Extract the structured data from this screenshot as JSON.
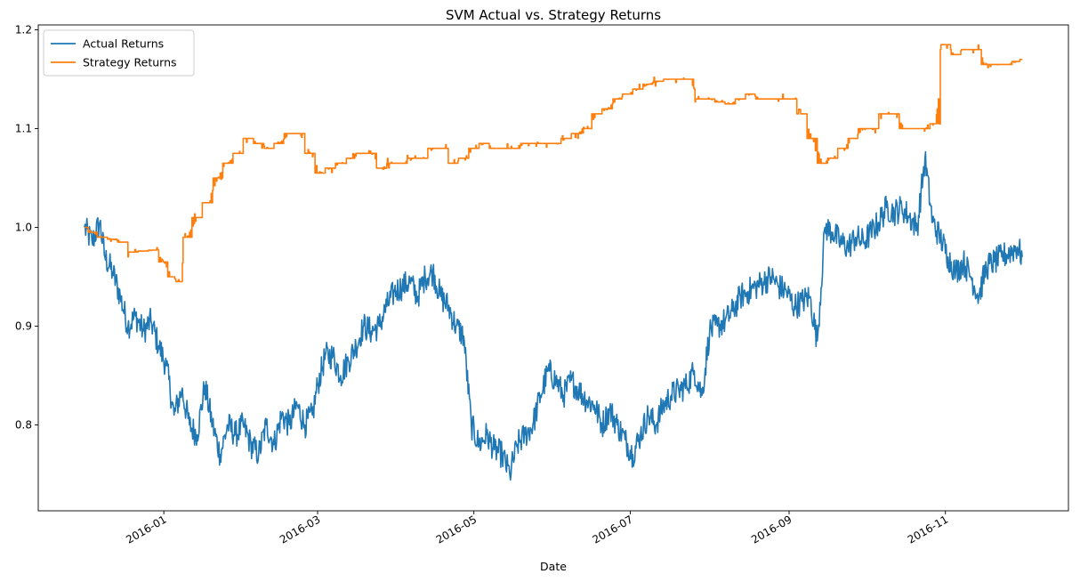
{
  "chart_data": {
    "type": "line",
    "title": "SVM Actual vs. Strategy Returns",
    "xlabel": "Date",
    "ylabel": "",
    "xlim": [
      "2015-11-13",
      "2016-12-19"
    ],
    "ylim": [
      0.713,
      1.205
    ],
    "x_ticks": [
      {
        "date": "2016-01-01",
        "label": "2016-01"
      },
      {
        "date": "2016-03-01",
        "label": "2016-03"
      },
      {
        "date": "2016-05-01",
        "label": "2016-05"
      },
      {
        "date": "2016-07-01",
        "label": "2016-07"
      },
      {
        "date": "2016-09-01",
        "label": "2016-09"
      },
      {
        "date": "2016-11-01",
        "label": "2016-11"
      }
    ],
    "y_ticks": [
      {
        "value": 0.8,
        "label": "0.8"
      },
      {
        "value": 0.9,
        "label": "0.9"
      },
      {
        "value": 1.0,
        "label": "1.0"
      },
      {
        "value": 1.1,
        "label": "1.1"
      },
      {
        "value": 1.2,
        "label": "1.2"
      }
    ],
    "grid": false,
    "legend_position": "top-left",
    "series": [
      {
        "name": "Actual Returns",
        "color": "#1f77b4",
        "x": [
          "2015-12-01",
          "2015-12-04",
          "2015-12-07",
          "2015-12-09",
          "2015-12-12",
          "2015-12-15",
          "2015-12-18",
          "2015-12-21",
          "2015-12-24",
          "2015-12-27",
          "2015-12-30",
          "2016-01-02",
          "2016-01-05",
          "2016-01-08",
          "2016-01-11",
          "2016-01-14",
          "2016-01-17",
          "2016-01-20",
          "2016-01-23",
          "2016-01-26",
          "2016-01-29",
          "2016-02-01",
          "2016-02-04",
          "2016-02-07",
          "2016-02-10",
          "2016-02-13",
          "2016-02-16",
          "2016-02-19",
          "2016-02-22",
          "2016-02-25",
          "2016-02-28",
          "2016-03-01",
          "2016-03-04",
          "2016-03-07",
          "2016-03-10",
          "2016-03-13",
          "2016-03-16",
          "2016-03-19",
          "2016-03-22",
          "2016-03-25",
          "2016-03-28",
          "2016-03-31",
          "2016-04-03",
          "2016-04-06",
          "2016-04-09",
          "2016-04-12",
          "2016-04-15",
          "2016-04-18",
          "2016-04-21",
          "2016-04-24",
          "2016-04-27",
          "2016-04-30",
          "2016-05-03",
          "2016-05-06",
          "2016-05-09",
          "2016-05-12",
          "2016-05-15",
          "2016-05-18",
          "2016-05-21",
          "2016-05-24",
          "2016-05-27",
          "2016-05-30",
          "2016-06-02",
          "2016-06-05",
          "2016-06-08",
          "2016-06-11",
          "2016-06-14",
          "2016-06-17",
          "2016-06-20",
          "2016-06-23",
          "2016-06-26",
          "2016-06-29",
          "2016-07-02",
          "2016-07-05",
          "2016-07-08",
          "2016-07-11",
          "2016-07-14",
          "2016-07-17",
          "2016-07-20",
          "2016-07-23",
          "2016-07-26",
          "2016-07-29",
          "2016-08-01",
          "2016-08-04",
          "2016-08-07",
          "2016-08-10",
          "2016-08-13",
          "2016-08-16",
          "2016-08-19",
          "2016-08-22",
          "2016-08-25",
          "2016-08-28",
          "2016-08-31",
          "2016-09-03",
          "2016-09-06",
          "2016-09-09",
          "2016-09-12",
          "2016-09-15",
          "2016-09-18",
          "2016-09-21",
          "2016-09-24",
          "2016-09-27",
          "2016-09-30",
          "2016-10-03",
          "2016-10-06",
          "2016-10-09",
          "2016-10-12",
          "2016-10-15",
          "2016-10-18",
          "2016-10-21",
          "2016-10-24",
          "2016-10-27",
          "2016-10-30",
          "2016-11-02",
          "2016-11-05",
          "2016-11-08",
          "2016-11-11",
          "2016-11-14",
          "2016-11-17",
          "2016-11-20",
          "2016-11-23",
          "2016-11-26",
          "2016-11-29",
          "2016-12-01"
        ],
        "values": [
          1.0,
          0.985,
          1.005,
          0.97,
          0.955,
          0.93,
          0.9,
          0.91,
          0.895,
          0.905,
          0.88,
          0.86,
          0.81,
          0.835,
          0.8,
          0.79,
          0.84,
          0.8,
          0.77,
          0.8,
          0.79,
          0.8,
          0.78,
          0.77,
          0.8,
          0.78,
          0.81,
          0.8,
          0.82,
          0.8,
          0.81,
          0.84,
          0.87,
          0.87,
          0.85,
          0.865,
          0.88,
          0.9,
          0.895,
          0.9,
          0.92,
          0.935,
          0.94,
          0.945,
          0.93,
          0.95,
          0.955,
          0.93,
          0.92,
          0.9,
          0.89,
          0.8,
          0.78,
          0.79,
          0.775,
          0.77,
          0.75,
          0.78,
          0.79,
          0.8,
          0.83,
          0.855,
          0.845,
          0.83,
          0.845,
          0.835,
          0.825,
          0.82,
          0.8,
          0.815,
          0.8,
          0.785,
          0.77,
          0.79,
          0.81,
          0.8,
          0.82,
          0.83,
          0.835,
          0.84,
          0.855,
          0.83,
          0.895,
          0.9,
          0.905,
          0.915,
          0.93,
          0.935,
          0.94,
          0.945,
          0.95,
          0.94,
          0.935,
          0.92,
          0.925,
          0.93,
          0.885,
          1.0,
          0.995,
          0.985,
          0.98,
          0.99,
          0.985,
          0.995,
          1.005,
          1.02,
          1.015,
          1.02,
          1.01,
          1.0,
          1.07,
          1.005,
          0.99,
          0.97,
          0.955,
          0.965,
          0.95,
          0.93,
          0.96,
          0.965,
          0.97,
          0.975,
          0.98,
          0.97
        ]
      },
      {
        "name": "Strategy Returns",
        "color": "#ff7f0e",
        "x": [
          "2015-12-01",
          "2015-12-04",
          "2015-12-08",
          "2015-12-12",
          "2015-12-16",
          "2015-12-20",
          "2015-12-24",
          "2015-12-28",
          "2016-01-01",
          "2016-01-04",
          "2016-01-07",
          "2016-01-10",
          "2016-01-14",
          "2016-01-18",
          "2016-01-22",
          "2016-01-26",
          "2016-01-30",
          "2016-02-03",
          "2016-02-07",
          "2016-02-11",
          "2016-02-15",
          "2016-02-19",
          "2016-02-23",
          "2016-02-27",
          "2016-03-02",
          "2016-03-06",
          "2016-03-10",
          "2016-03-14",
          "2016-03-18",
          "2016-03-22",
          "2016-03-26",
          "2016-03-30",
          "2016-04-03",
          "2016-04-07",
          "2016-04-11",
          "2016-04-15",
          "2016-04-19",
          "2016-04-23",
          "2016-04-27",
          "2016-05-01",
          "2016-05-05",
          "2016-05-09",
          "2016-05-13",
          "2016-05-17",
          "2016-05-21",
          "2016-05-25",
          "2016-05-29",
          "2016-06-02",
          "2016-06-06",
          "2016-06-10",
          "2016-06-14",
          "2016-06-18",
          "2016-06-22",
          "2016-06-26",
          "2016-06-30",
          "2016-07-04",
          "2016-07-08",
          "2016-07-12",
          "2016-07-16",
          "2016-07-20",
          "2016-07-24",
          "2016-07-28",
          "2016-08-01",
          "2016-08-05",
          "2016-08-09",
          "2016-08-13",
          "2016-08-17",
          "2016-08-21",
          "2016-08-25",
          "2016-08-29",
          "2016-09-02",
          "2016-09-06",
          "2016-09-10",
          "2016-09-14",
          "2016-09-18",
          "2016-09-22",
          "2016-09-26",
          "2016-09-30",
          "2016-10-04",
          "2016-10-08",
          "2016-10-12",
          "2016-10-16",
          "2016-10-20",
          "2016-10-24",
          "2016-10-28",
          "2016-11-01",
          "2016-11-05",
          "2016-11-09",
          "2016-11-13",
          "2016-11-17",
          "2016-11-21",
          "2016-11-25",
          "2016-11-29",
          "2016-12-01"
        ],
        "values": [
          1.0,
          0.995,
          0.99,
          0.988,
          0.985,
          0.975,
          0.976,
          0.977,
          0.965,
          0.95,
          0.945,
          0.99,
          1.01,
          1.025,
          1.05,
          1.065,
          1.075,
          1.09,
          1.085,
          1.08,
          1.085,
          1.095,
          1.095,
          1.075,
          1.055,
          1.06,
          1.065,
          1.07,
          1.075,
          1.075,
          1.06,
          1.065,
          1.065,
          1.07,
          1.07,
          1.08,
          1.08,
          1.065,
          1.07,
          1.08,
          1.085,
          1.08,
          1.08,
          1.08,
          1.085,
          1.085,
          1.085,
          1.085,
          1.09,
          1.095,
          1.1,
          1.115,
          1.12,
          1.13,
          1.135,
          1.14,
          1.145,
          1.148,
          1.15,
          1.15,
          1.15,
          1.13,
          1.13,
          1.127,
          1.125,
          1.13,
          1.135,
          1.13,
          1.13,
          1.13,
          1.13,
          1.115,
          1.09,
          1.065,
          1.07,
          1.08,
          1.09,
          1.1,
          1.1,
          1.115,
          1.115,
          1.1,
          1.1,
          1.1,
          1.105,
          1.185,
          1.175,
          1.18,
          1.18,
          1.165,
          1.165,
          1.165,
          1.168,
          1.17
        ]
      }
    ]
  }
}
